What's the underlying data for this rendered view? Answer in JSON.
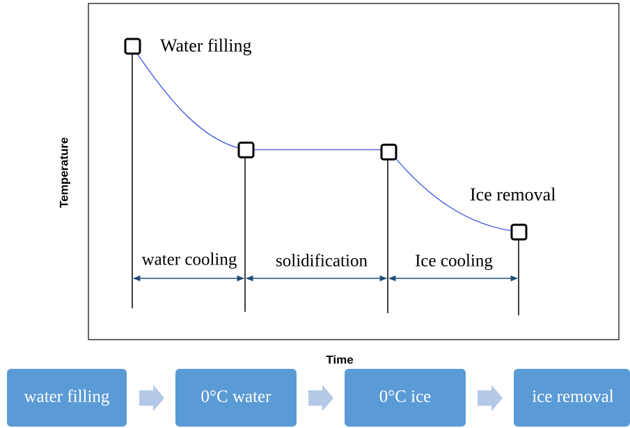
{
  "y_axis_label": "Temperature",
  "x_axis_label": "Time",
  "annotations": [
    "Water filling",
    "Ice removal"
  ],
  "phases": [
    "water cooling",
    "solidification",
    "Ice cooling"
  ],
  "steps": [
    "water filling",
    "0°C water",
    "0°C ice",
    "ice removal"
  ]
}
